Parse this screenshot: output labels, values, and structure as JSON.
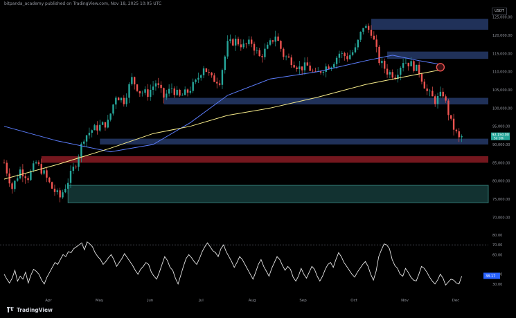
{
  "header": {
    "title": "bitpanda_academy published on TradingView.com, Nov 18, 2025 10:05 UTC"
  },
  "currency_label": "USDT",
  "brand": {
    "name": "TradingView",
    "icon": "tradingview-logo-icon"
  },
  "colors": {
    "background": "#000000",
    "price_up": "#26a69a",
    "price_down": "#ef5350",
    "ma_fast": "#5b7cfa",
    "ma_slow": "#f7ec8a",
    "supply_zone": "#22345e",
    "red_zone": "#7a1820",
    "green_zone": "#153b39",
    "rsi_line": "#e6e6e6"
  },
  "chart_data": [
    {
      "type": "candlestick",
      "title": "",
      "xlabel": "",
      "ylabel": "",
      "x_ticks": [
        "Apr",
        "May",
        "Jun",
        "Jul",
        "Aug",
        "Sep",
        "Oct",
        "Nov",
        "Dec"
      ],
      "y_ticks": [
        "125,000.00",
        "120,000.00",
        "115,000.00",
        "110,000.00",
        "105,000.00",
        "100,000.00",
        "95,000.00",
        "90,000.00",
        "85,000.00",
        "80,000.00",
        "75,000.00",
        "70,000.00"
      ],
      "ylim": [
        68000,
        127000
      ],
      "last_price": "92,150.00",
      "last_price_time": "5d 10h",
      "close_path": [
        [
          0,
          85000
        ],
        [
          3,
          78000
        ],
        [
          6,
          83000
        ],
        [
          9,
          81000
        ],
        [
          12,
          85000
        ],
        [
          15,
          82000
        ],
        [
          18,
          78000
        ],
        [
          21,
          75500
        ],
        [
          24,
          80000
        ],
        [
          27,
          85000
        ],
        [
          30,
          92000
        ],
        [
          33,
          94000
        ],
        [
          36,
          95000
        ],
        [
          39,
          96000
        ],
        [
          42,
          103500
        ],
        [
          45,
          102000
        ],
        [
          48,
          108000
        ],
        [
          51,
          104500
        ],
        [
          54,
          104000
        ],
        [
          57,
          107000
        ],
        [
          60,
          103000
        ],
        [
          63,
          105500
        ],
        [
          66,
          103000
        ],
        [
          69,
          104500
        ],
        [
          72,
          107000
        ],
        [
          75,
          111500
        ],
        [
          78,
          108000
        ],
        [
          81,
          107500
        ],
        [
          84,
          117500
        ],
        [
          87,
          118500
        ],
        [
          90,
          117000
        ],
        [
          93,
          118000
        ],
        [
          96,
          114000
        ],
        [
          99,
          116500
        ],
        [
          102,
          120000
        ],
        [
          105,
          114500
        ],
        [
          108,
          113000
        ],
        [
          111,
          111000
        ],
        [
          114,
          111500
        ],
        [
          117,
          109000
        ],
        [
          120,
          111000
        ],
        [
          123,
          112000
        ],
        [
          126,
          115000
        ],
        [
          129,
          114000
        ],
        [
          132,
          116000
        ],
        [
          135,
          122500
        ],
        [
          138,
          121000
        ],
        [
          141,
          113000
        ],
        [
          144,
          110000
        ],
        [
          147,
          109000
        ],
        [
          150,
          113000
        ],
        [
          153,
          112000
        ],
        [
          156,
          110000
        ],
        [
          159,
          104500
        ],
        [
          162,
          102000
        ],
        [
          165,
          104000
        ],
        [
          168,
          96000
        ],
        [
          171,
          91500
        ],
        [
          172,
          92150
        ]
      ],
      "series": [
        {
          "name": "",
          "role": "fast moving average",
          "color": "#5b7cfa",
          "points": [
            [
              0,
              95000
            ],
            [
              20,
              91000
            ],
            [
              40,
              88000
            ],
            [
              56,
              90000
            ],
            [
              70,
              96000
            ],
            [
              84,
              103500
            ],
            [
              100,
              108000
            ],
            [
              118,
              110000
            ],
            [
              136,
              113000
            ],
            [
              146,
              114500
            ],
            [
              156,
              113000
            ],
            [
              164,
              112000
            ]
          ]
        },
        {
          "name": "",
          "role": "slow moving average",
          "color": "#f7ec8a",
          "points": [
            [
              0,
              80500
            ],
            [
              20,
              84500
            ],
            [
              40,
              89000
            ],
            [
              56,
              93000
            ],
            [
              70,
              95000
            ],
            [
              84,
              98000
            ],
            [
              100,
              100000
            ],
            [
              118,
              103000
            ],
            [
              136,
              106500
            ],
            [
              150,
              108500
            ],
            [
              164,
              110500
            ]
          ]
        }
      ],
      "zones": [
        {
          "kind": "supply",
          "color": "#22345e",
          "y_range": [
            121500,
            124500
          ],
          "x_range": [
            138,
            182
          ]
        },
        {
          "kind": "supply",
          "color": "#22345e",
          "y_range": [
            113500,
            115500
          ],
          "x_range": [
            144,
            182
          ]
        },
        {
          "kind": "supply",
          "color": "#22345e",
          "y_range": [
            101000,
            102800
          ],
          "x_range": [
            60,
            182
          ]
        },
        {
          "kind": "supply",
          "color": "#22345e",
          "y_range": [
            90000,
            91600
          ],
          "x_range": [
            36,
            182
          ]
        },
        {
          "kind": "resistance",
          "color": "#7a1820",
          "y_range": [
            85000,
            86800
          ],
          "x_range": [
            14,
            182
          ]
        },
        {
          "kind": "demand",
          "color": "#153b39",
          "y_range": [
            74000,
            78800
          ],
          "x_range": [
            24,
            182
          ]
        }
      ],
      "marker": {
        "shape": "circle",
        "color": "#ef5350",
        "x": 164,
        "y": 111200
      }
    },
    {
      "type": "line",
      "title": "",
      "xlabel": "",
      "ylabel": "",
      "ylim": [
        20,
        80
      ],
      "reference_line": 70,
      "y_ticks": [
        "80.00",
        "70.00",
        "60.00",
        "40.00",
        "30.00"
      ],
      "last_value_label": "38.17",
      "values": [
        40,
        35,
        31,
        36,
        44,
        33,
        38,
        35,
        42,
        31,
        39,
        45,
        43,
        40,
        34,
        30,
        37,
        42,
        47,
        52,
        50,
        55,
        60,
        58,
        63,
        62,
        66,
        68,
        70,
        72,
        65,
        73,
        71,
        68,
        62,
        58,
        55,
        50,
        53,
        57,
        60,
        55,
        48,
        52,
        56,
        61,
        57,
        53,
        49,
        44,
        40,
        45,
        48,
        52,
        50,
        42,
        38,
        35,
        42,
        50,
        58,
        54,
        47,
        44,
        36,
        30,
        39,
        48,
        56,
        60,
        57,
        53,
        50,
        56,
        63,
        68,
        72,
        68,
        64,
        62,
        58,
        66,
        70,
        63,
        58,
        53,
        47,
        52,
        58,
        55,
        50,
        45,
        40,
        35,
        42,
        50,
        55,
        48,
        43,
        38,
        46,
        52,
        58,
        55,
        49,
        44,
        48,
        45,
        37,
        33,
        38,
        46,
        40,
        36,
        42,
        48,
        45,
        38,
        33,
        38,
        45,
        50,
        52,
        47,
        55,
        62,
        58,
        52,
        48,
        44,
        40,
        37,
        42,
        46,
        50,
        53,
        48,
        40,
        34,
        43,
        58,
        65,
        71,
        70,
        66,
        55,
        49,
        46,
        40,
        38,
        46,
        42,
        37,
        34,
        33,
        40,
        48,
        46,
        42,
        37,
        33,
        30,
        34,
        40,
        36,
        29,
        32,
        35,
        34,
        31,
        30,
        38
      ]
    }
  ]
}
